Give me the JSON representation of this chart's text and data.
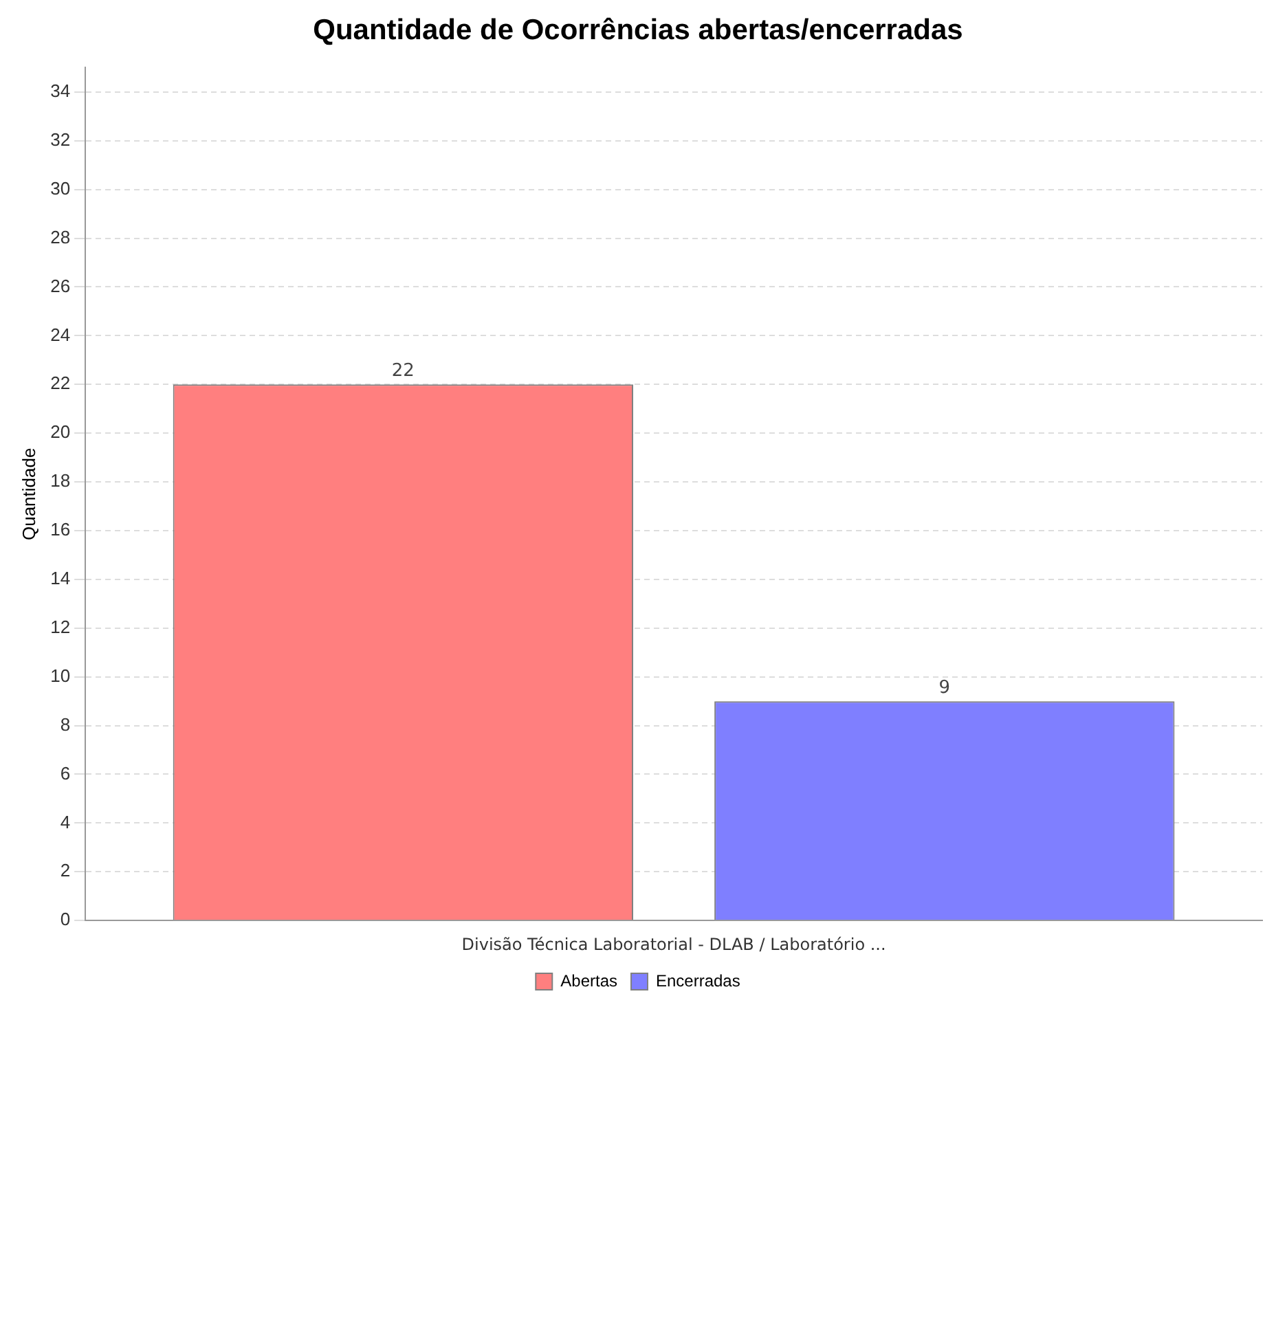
{
  "chart_data": {
    "type": "bar",
    "title": "Quantidade de Ocorrências abertas/encerradas",
    "ylabel": "Quantidade",
    "categories": [
      "Divisão Técnica Laboratorial - DLAB / Laboratório ..."
    ],
    "series": [
      {
        "name": "Abertas",
        "color": "#ff7f7f",
        "values": [
          22
        ]
      },
      {
        "name": "Encerradas",
        "color": "#7f7fff",
        "values": [
          9
        ]
      }
    ],
    "ylim": [
      0,
      35
    ],
    "yticks": [
      0,
      2,
      4,
      6,
      8,
      10,
      12,
      14,
      16,
      18,
      20,
      22,
      24,
      26,
      28,
      30,
      32,
      34
    ],
    "grid": "y",
    "legend": "bottom",
    "data_labels": true
  }
}
